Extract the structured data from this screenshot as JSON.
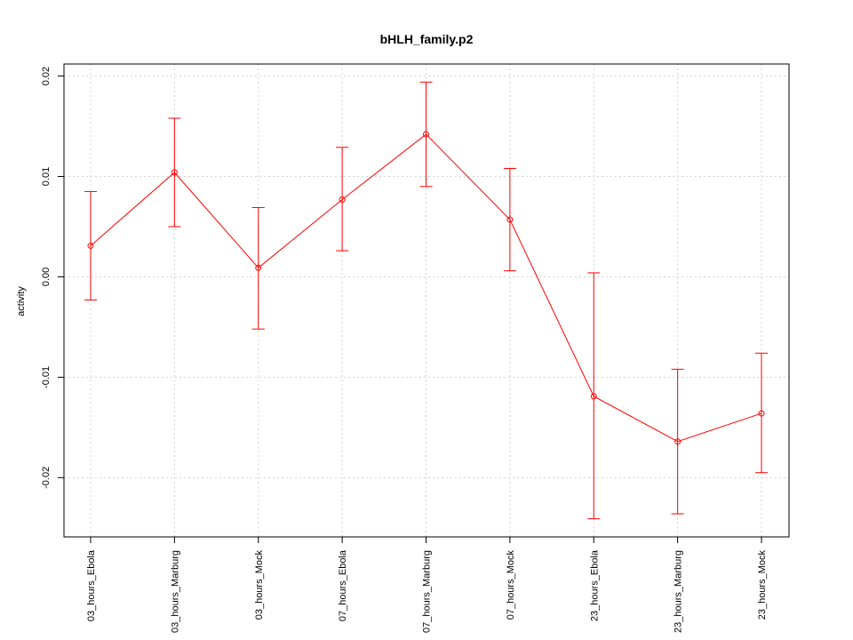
{
  "chart_data": {
    "type": "line",
    "title": "bHLH_family.p2",
    "xlabel": "",
    "ylabel": "activity",
    "categories": [
      "03_hours_Ebola",
      "03_hours_Marburg",
      "03_hours_Mock",
      "07_hours_Ebola",
      "07_hours_Marburg",
      "07_hours_Mock",
      "23_hours_Ebola",
      "23_hours_Marburg",
      "23_hours_Mock"
    ],
    "values": [
      0.0031,
      0.0104,
      0.0009,
      0.0077,
      0.0142,
      0.0057,
      -0.0119,
      -0.0164,
      -0.0136
    ],
    "error_lower": [
      -0.0023,
      0.005,
      -0.0052,
      0.0026,
      0.009,
      0.0006,
      -0.0241,
      -0.0236,
      -0.0195
    ],
    "error_upper": [
      0.0085,
      0.0158,
      0.0069,
      0.0129,
      0.0194,
      0.0108,
      0.0004,
      -0.0092,
      -0.0076
    ],
    "yticks": [
      -0.02,
      -0.01,
      0.0,
      0.01,
      0.02
    ],
    "ytick_labels": [
      "-0.02",
      "-0.01",
      "0.00",
      "0.01",
      "0.02"
    ],
    "ylim": [
      -0.0259,
      0.0212
    ],
    "grid": true,
    "color": "#ff0000"
  }
}
